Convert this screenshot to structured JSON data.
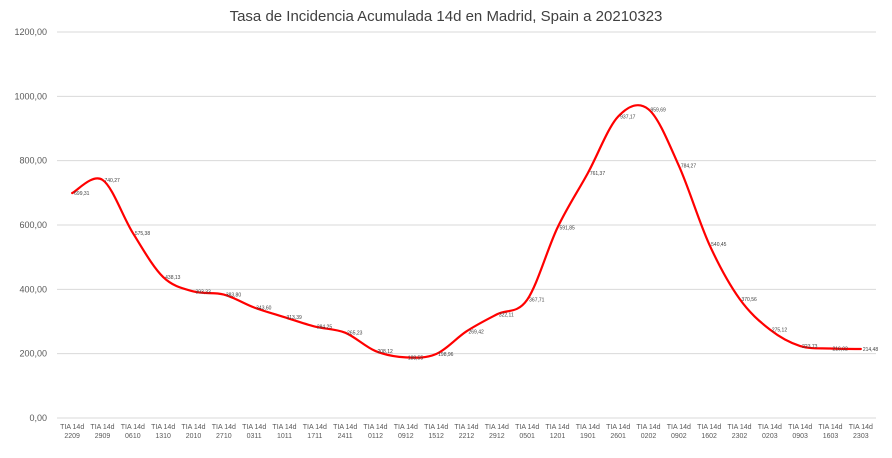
{
  "chart_data": {
    "type": "line",
    "title": "Tasa de Incidencia Acumulada 14d en Madrid, Spain a 20210323",
    "xlabel": "",
    "ylabel": "",
    "ylim": [
      0,
      1200
    ],
    "yticks": [
      "0,00",
      "200,00",
      "400,00",
      "600,00",
      "800,00",
      "1000,00",
      "1200,00"
    ],
    "ytick_values": [
      0,
      200,
      400,
      600,
      800,
      1000,
      1200
    ],
    "grid": true,
    "legend": "none",
    "categories": [
      [
        "TIA 14d",
        "2209"
      ],
      [
        "TIA 14d",
        "2909"
      ],
      [
        "TIA 14d",
        "0610"
      ],
      [
        "TIA 14d",
        "1310"
      ],
      [
        "TIA 14d",
        "2010"
      ],
      [
        "TIA 14d",
        "2710"
      ],
      [
        "TIA 14d",
        "0311"
      ],
      [
        "TIA 14d",
        "1011"
      ],
      [
        "TIA 14d",
        "1711"
      ],
      [
        "TIA 14d",
        "2411"
      ],
      [
        "TIA 14d",
        "0112"
      ],
      [
        "TIA 14d",
        "0912"
      ],
      [
        "TIA 14d",
        "1512"
      ],
      [
        "TIA 14d",
        "2212"
      ],
      [
        "TIA 14d",
        "2912"
      ],
      [
        "TIA 14d",
        "0501"
      ],
      [
        "TIA 14d",
        "1201"
      ],
      [
        "TIA 14d",
        "1901"
      ],
      [
        "TIA 14d",
        "2601"
      ],
      [
        "TIA 14d",
        "0202"
      ],
      [
        "TIA 14d",
        "0902"
      ],
      [
        "TIA 14d",
        "1602"
      ],
      [
        "TIA 14d",
        "2302"
      ],
      [
        "TIA 14d",
        "0203"
      ],
      [
        "TIA 14d",
        "0903"
      ],
      [
        "TIA 14d",
        "1603"
      ],
      [
        "TIA 14d",
        "2303"
      ]
    ],
    "series": [
      {
        "color": "#ff0000",
        "values": [
          699.31,
          740.27,
          575.38,
          438.13,
          393.33,
          383.8,
          343.6,
          313.39,
          284.25,
          265.23,
          208.12,
          188.55,
          198.96,
          269.42,
          322.11,
          367.71,
          591.85,
          761.37,
          937.17,
          959.69,
          784.27,
          540.45,
          370.56,
          275.12,
          223.73,
          216.02,
          214.48
        ],
        "labels": [
          "699,31",
          "740,27",
          "575,38",
          "438,13",
          "393,33",
          "383,80",
          "343,60",
          "313,39",
          "284,25",
          "265,23",
          "208,12",
          "188,55",
          "198,96",
          "269,42",
          "322,11",
          "367,71",
          "591,85",
          "761,37",
          "937,17",
          "959,69",
          "784,27",
          "540,45",
          "370,56",
          "275,12",
          "223,73",
          "216,02",
          "214,48"
        ]
      }
    ]
  }
}
